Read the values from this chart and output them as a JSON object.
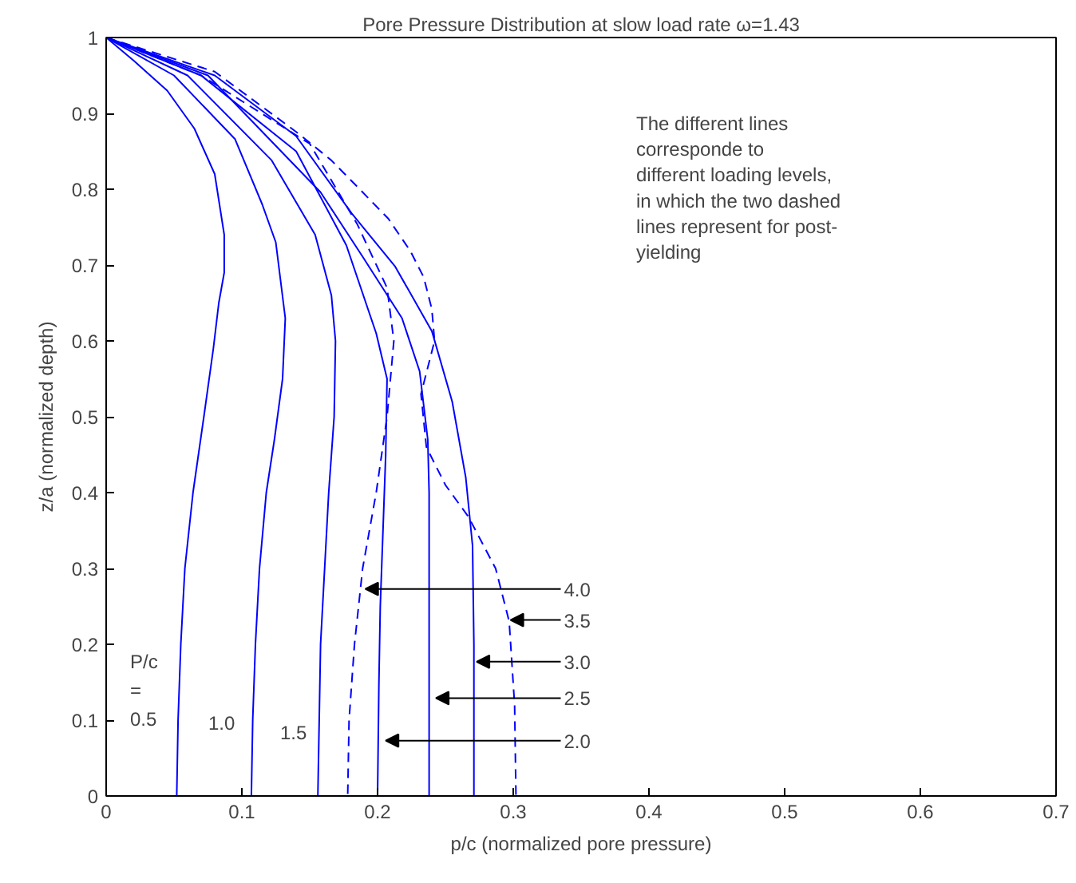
{
  "chart_data": {
    "type": "line",
    "title": "Pore Pressure Distribution at slow load rate ω=1.43",
    "xlabel": "p/c (normalized pore pressure)",
    "ylabel": "z/a (normalized depth)",
    "xlim": [
      0,
      0.7
    ],
    "ylim": [
      0,
      1
    ],
    "xticks": [
      0,
      0.1,
      0.2,
      0.3,
      0.4,
      0.5,
      0.6,
      0.7
    ],
    "yticks": [
      0,
      0.1,
      0.2,
      0.3,
      0.4,
      0.5,
      0.6,
      0.7,
      0.8,
      0.9,
      1
    ],
    "marker": "none",
    "series": [
      {
        "color": "#0000ff",
        "line_style": "solid",
        "x": [
          0,
          0.02,
          0.045,
          0.065,
          0.08,
          0.087,
          0.087,
          0.083,
          0.079,
          0.072,
          0.064,
          0.058,
          0.055,
          0.053,
          0.052
        ],
        "values": [
          1,
          0.97,
          0.93,
          0.88,
          0.82,
          0.74,
          0.69,
          0.65,
          0.59,
          0.5,
          0.4,
          0.3,
          0.2,
          0.1,
          0
        ]
      },
      {
        "color": "#0000ff",
        "line_style": "solid",
        "x": [
          0,
          0.05,
          0.095,
          0.115,
          0.125,
          0.132,
          0.13,
          0.124,
          0.118,
          0.113,
          0.11,
          0.108,
          0.107
        ],
        "values": [
          1,
          0.95,
          0.866,
          0.78,
          0.73,
          0.63,
          0.55,
          0.47,
          0.4,
          0.3,
          0.2,
          0.1,
          0
        ]
      },
      {
        "color": "#0000ff",
        "line_style": "solid",
        "x": [
          0,
          0.06,
          0.122,
          0.154,
          0.166,
          0.169,
          0.168,
          0.164,
          0.161,
          0.158,
          0.157,
          0.156
        ],
        "values": [
          1,
          0.95,
          0.838,
          0.74,
          0.66,
          0.6,
          0.5,
          0.4,
          0.3,
          0.2,
          0.1,
          0
        ]
      },
      {
        "color": "#0000ff",
        "line_style": "solid",
        "x": [
          0,
          0.07,
          0.14,
          0.177,
          0.199,
          0.207,
          0.206,
          0.204,
          0.202,
          0.201,
          0.2
        ],
        "values": [
          1,
          0.95,
          0.85,
          0.726,
          0.61,
          0.55,
          0.45,
          0.35,
          0.25,
          0.15,
          0
        ]
      },
      {
        "color": "#0000ff",
        "line_style": "solid",
        "x": [
          0,
          0.075,
          0.158,
          0.189,
          0.218,
          0.231,
          0.237,
          0.238,
          0.238
        ],
        "values": [
          1,
          0.95,
          0.796,
          0.711,
          0.63,
          0.56,
          0.47,
          0.4,
          0
        ]
      },
      {
        "color": "#0000ff",
        "line_style": "solid",
        "x": [
          0,
          0.08,
          0.14,
          0.181,
          0.213,
          0.24,
          0.255,
          0.265,
          0.27,
          0.271,
          0.271
        ],
        "values": [
          1,
          0.95,
          0.87,
          0.768,
          0.698,
          0.613,
          0.52,
          0.42,
          0.33,
          0.2,
          0
        ]
      },
      {
        "color": "#0000ff",
        "line_style": "dashed",
        "x": [
          0,
          0.08,
          0.142,
          0.166,
          0.189,
          0.208,
          0.224,
          0.234,
          0.24,
          0.242,
          0.232,
          0.236,
          0.25,
          0.267,
          0.287,
          0.297,
          0.301,
          0.302
        ],
        "values": [
          1,
          0.955,
          0.873,
          0.838,
          0.796,
          0.761,
          0.719,
          0.684,
          0.642,
          0.6,
          0.53,
          0.46,
          0.41,
          0.368,
          0.3,
          0.23,
          0.12,
          0
        ]
      },
      {
        "color": "#0000ff",
        "line_style": "dashed",
        "x": [
          0,
          0.07,
          0.15,
          0.185,
          0.207,
          0.212,
          0.207,
          0.199,
          0.189,
          0.183,
          0.179,
          0.178
        ],
        "values": [
          1,
          0.95,
          0.86,
          0.754,
          0.67,
          0.6,
          0.5,
          0.4,
          0.3,
          0.2,
          0.1,
          0
        ]
      }
    ],
    "annotations": [
      "The different lines\ncorresponde to\ndifferent loading levels,\nin which the two dashed\nlines represent for post-\nyielding",
      "P/c\n=\n0.5",
      "1.0",
      "1.5",
      {
        "text": "4.0",
        "x": 0.191,
        "y": 0.273
      },
      {
        "text": "3.5",
        "x": 0.298,
        "y": 0.232
      },
      {
        "text": "3.0",
        "x": 0.273,
        "y": 0.177
      },
      {
        "text": "2.5",
        "x": 0.243,
        "y": 0.129
      },
      {
        "text": "2.0",
        "x": 0.206,
        "y": 0.073
      }
    ]
  }
}
